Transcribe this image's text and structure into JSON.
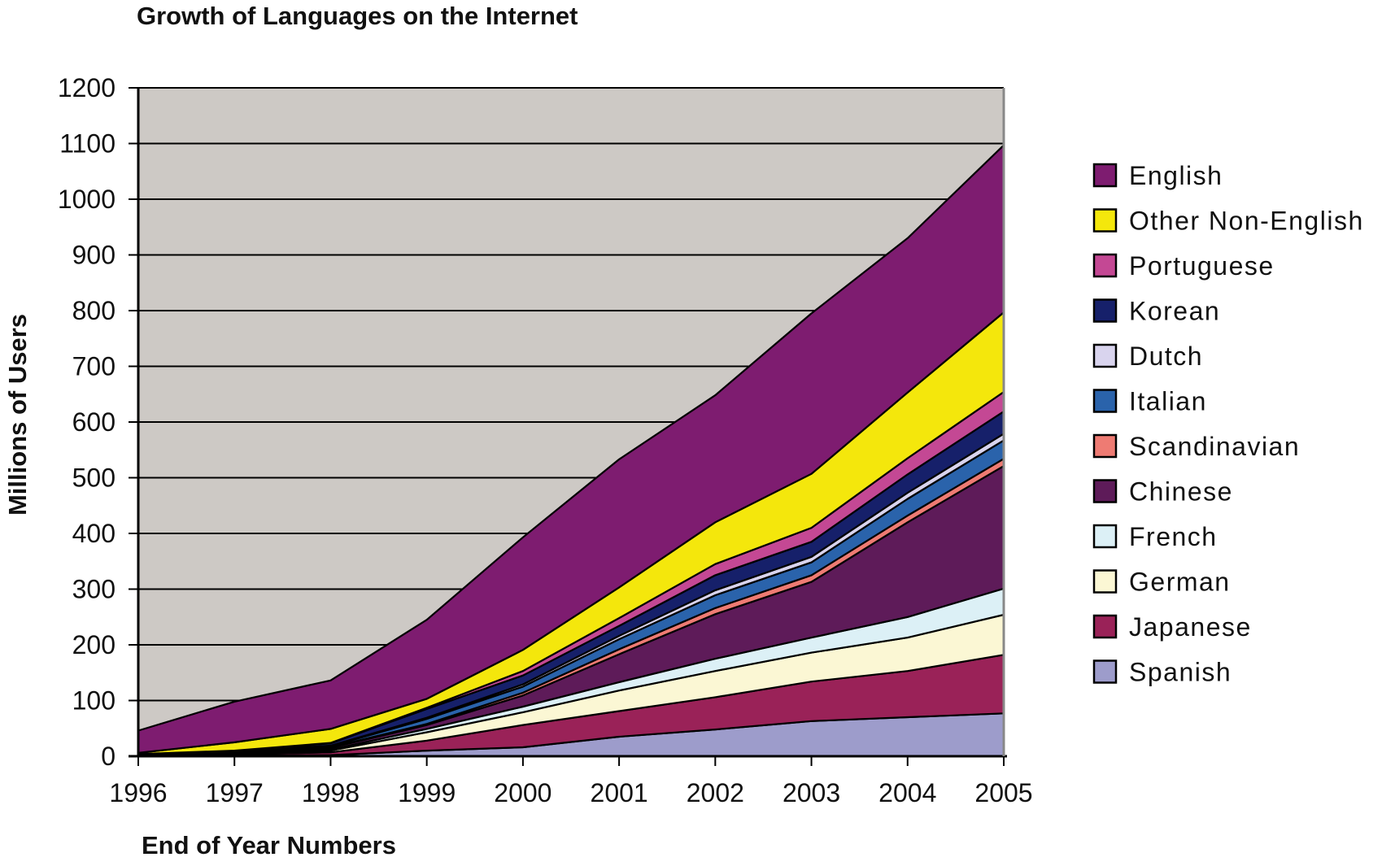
{
  "chart_data": {
    "type": "area",
    "stacked": true,
    "title": "Growth of Languages on the Internet",
    "xlabel": "End of Year Numbers",
    "ylabel": "Millions of Users",
    "x": [
      "1996",
      "1997",
      "1998",
      "1999",
      "2000",
      "2001",
      "2002",
      "2003",
      "2004",
      "2005"
    ],
    "ylim": [
      0,
      1200
    ],
    "yticks": [
      0,
      100,
      200,
      300,
      400,
      500,
      600,
      700,
      800,
      900,
      1000,
      1100,
      1200
    ],
    "grid": true,
    "legend_position": "right",
    "plot_background": "#cdc9c5",
    "series": [
      {
        "name": "Spanish",
        "color": "#9d9ccb",
        "values": [
          0,
          1,
          2,
          10,
          16,
          35,
          48,
          63,
          70,
          77
        ]
      },
      {
        "name": "Japanese",
        "color": "#9a2258",
        "values": [
          1,
          2,
          5,
          18,
          40,
          46,
          58,
          71,
          83,
          105
        ]
      },
      {
        "name": "German",
        "color": "#fbf7d4",
        "values": [
          1,
          2,
          3,
          15,
          23,
          37,
          47,
          52,
          60,
          72
        ]
      },
      {
        "name": "French",
        "color": "#dcf0f6",
        "values": [
          1,
          1,
          2,
          6,
          10,
          15,
          22,
          27,
          37,
          47
        ]
      },
      {
        "name": "Chinese",
        "color": "#5e1b59",
        "values": [
          1,
          2,
          3,
          7,
          20,
          50,
          80,
          100,
          170,
          220
        ]
      },
      {
        "name": "Scandinavian",
        "color": "#ee7b73",
        "values": [
          0,
          0,
          1,
          2,
          5,
          9,
          11,
          12,
          12,
          13
        ]
      },
      {
        "name": "Italian",
        "color": "#2a63ab",
        "values": [
          0,
          1,
          2,
          9,
          11,
          18,
          23,
          23,
          30,
          33
        ]
      },
      {
        "name": "Dutch",
        "color": "#d9d4ee",
        "values": [
          0,
          0,
          1,
          2,
          4,
          6,
          9,
          10,
          11,
          12
        ]
      },
      {
        "name": "Korean",
        "color": "#16206a",
        "values": [
          0,
          1,
          4,
          16,
          16,
          18,
          27,
          27,
          33,
          40
        ]
      },
      {
        "name": "Portuguese",
        "color": "#c44894",
        "values": [
          0,
          0,
          1,
          2,
          8,
          14,
          20,
          25,
          29,
          35
        ]
      },
      {
        "name": "Other Non-English",
        "color": "#f4e70c",
        "values": [
          2,
          15,
          25,
          16,
          38,
          55,
          75,
          97,
          118,
          143
        ]
      },
      {
        "name": "English",
        "color": "#7e1c70",
        "values": [
          40,
          73,
          87,
          142,
          202,
          230,
          228,
          288,
          277,
          300
        ]
      }
    ]
  }
}
